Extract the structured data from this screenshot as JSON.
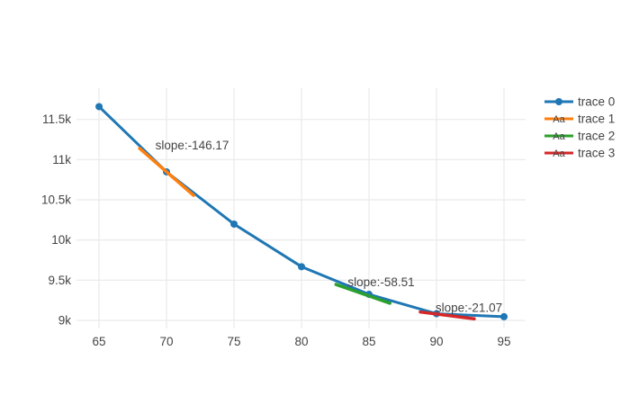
{
  "chart_data": {
    "type": "line",
    "title": "",
    "xlabel": "",
    "ylabel": "",
    "grid": true,
    "x_range": [
      63.33,
      96.6
    ],
    "y_range": [
      8899,
      11889
    ],
    "x_ticks": {
      "values": [
        65,
        70,
        75,
        80,
        85,
        90,
        95
      ],
      "labels": [
        "65",
        "70",
        "75",
        "80",
        "85",
        "90",
        "95"
      ]
    },
    "y_ticks": {
      "values": [
        9000,
        9500,
        10000,
        10500,
        11000,
        11500
      ],
      "labels": [
        "9k",
        "9.5k",
        "10k",
        "10.5k",
        "11k",
        "11.5k"
      ]
    },
    "series": [
      {
        "name": "trace 0",
        "mode": "lines+markers",
        "color": "#1f77b4",
        "x": [
          65,
          70,
          75,
          80,
          85,
          90,
          95
        ],
        "y": [
          11660,
          10848,
          10198,
          9668,
          9324,
          9083,
          9046
        ]
      },
      {
        "name": "trace 1",
        "mode": "tangent",
        "color": "#ff7f0e",
        "center_x": 70,
        "center_y": 10848,
        "slope": -146.17,
        "half_width": 2
      },
      {
        "name": "trace 2",
        "mode": "tangent",
        "color": "#2ca02c",
        "center_x": 84.55,
        "center_y": 9330,
        "slope": -58.51,
        "half_width": 2
      },
      {
        "name": "trace 3",
        "mode": "tangent",
        "color": "#d62728",
        "center_x": 90.8,
        "center_y": 9062,
        "slope": -21.07,
        "half_width": 2
      }
    ],
    "annotations": [
      {
        "text": "slope:-146.17",
        "x": 71.9,
        "y": 11180
      },
      {
        "text": "slope:-58.51",
        "x": 85.9,
        "y": 9478
      },
      {
        "text": "slope:-21.07",
        "x": 92.4,
        "y": 9155
      }
    ],
    "legend": {
      "position": "right",
      "entries": [
        {
          "label": "trace 0",
          "color": "#1f77b4",
          "glyph": "line-marker",
          "glyph_text": ""
        },
        {
          "label": "trace 1",
          "color": "#ff7f0e",
          "glyph": "line-text",
          "glyph_text": "Aa"
        },
        {
          "label": "trace 2",
          "color": "#2ca02c",
          "glyph": "line-text",
          "glyph_text": "Aa"
        },
        {
          "label": "trace 3",
          "color": "#d62728",
          "glyph": "line-text",
          "glyph_text": "Aa"
        }
      ]
    },
    "colors": {
      "background": "#ffffff",
      "grid": "#ebebeb",
      "tick_text": "#444444",
      "annotation_text": "#444444",
      "legend_text": "#444444"
    }
  }
}
